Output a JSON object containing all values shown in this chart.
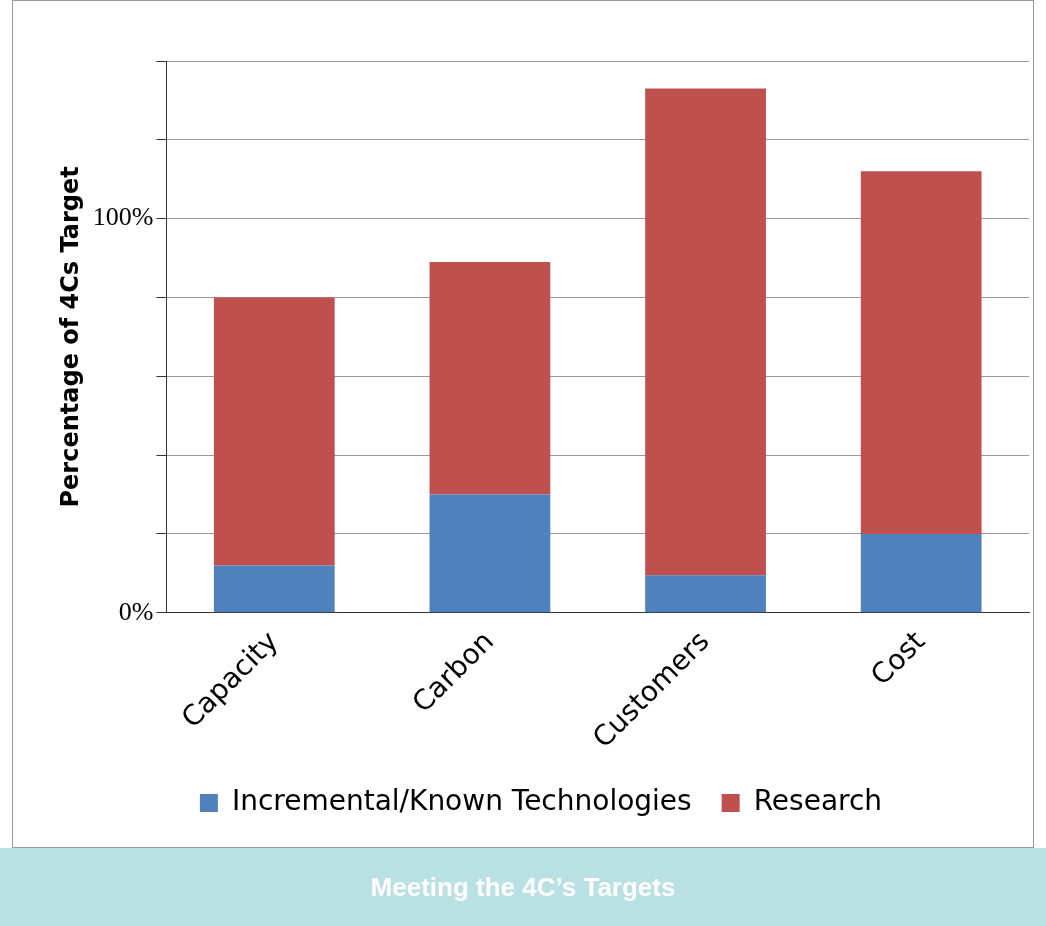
{
  "chart_data": {
    "type": "bar",
    "title": "Meeting the 4C’s Targets",
    "ylabel": "Percentage of 4Cs Target",
    "categories": [
      "Capacity",
      "Carbon",
      "Customers",
      "Cost"
    ],
    "series": [
      {
        "name": "Incremental/Known Technologies",
        "color": "#4f81bd",
        "values": [
          12,
          30,
          9.5,
          20
        ]
      },
      {
        "name": "Research",
        "color": "#c0504d",
        "values": [
          68,
          59,
          123.5,
          92
        ]
      }
    ],
    "stacked": true,
    "ylim": [
      0,
      140
    ],
    "yticks": [
      {
        "value": 0,
        "label": "0%"
      },
      {
        "value": 20,
        "label": null
      },
      {
        "value": 40,
        "label": null
      },
      {
        "value": 60,
        "label": null
      },
      {
        "value": 80,
        "label": null
      },
      {
        "value": 100,
        "label": "100%"
      },
      {
        "value": 120,
        "label": null
      },
      {
        "value": 140,
        "label": null
      }
    ],
    "grid": "y",
    "legend": "bottom"
  }
}
